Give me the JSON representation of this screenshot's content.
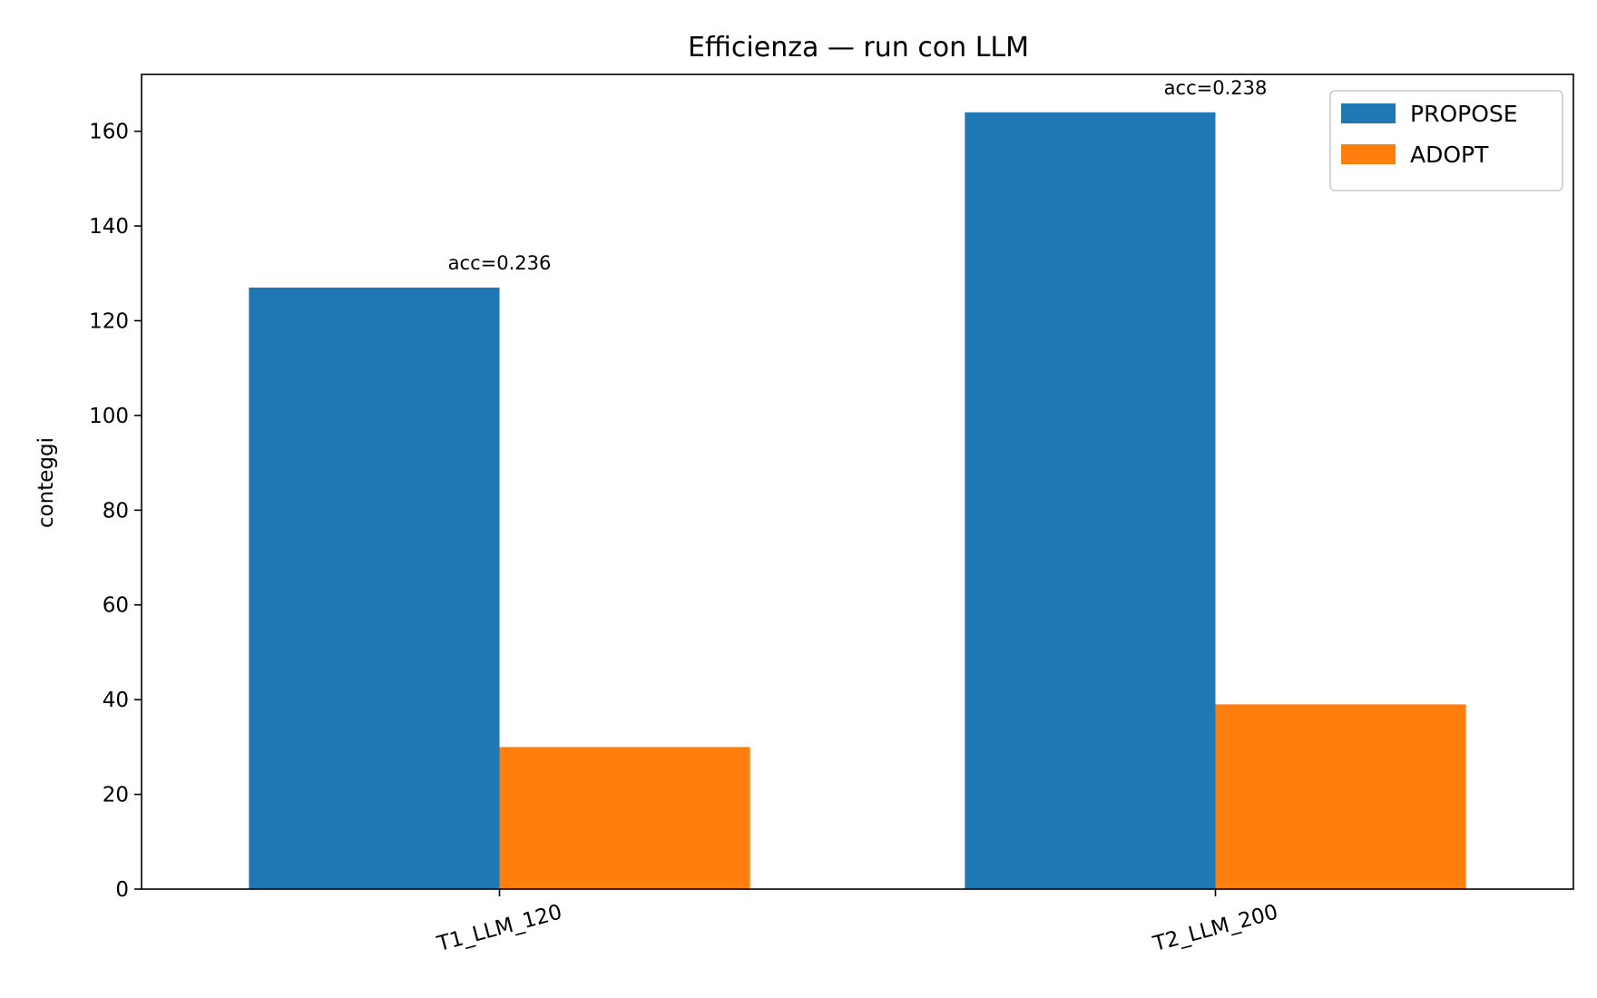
{
  "chart_data": {
    "type": "bar",
    "title": "Efficienza — run con LLM",
    "xlabel": "",
    "ylabel": "conteggi",
    "categories": [
      "T1_LLM_120",
      "T2_LLM_200"
    ],
    "series": [
      {
        "name": "PROPOSE",
        "color": "#1f77b4",
        "values": [
          127,
          164
        ]
      },
      {
        "name": "ADOPT",
        "color": "#ff7f0e",
        "values": [
          30,
          39
        ]
      }
    ],
    "annotations": [
      "acc=0.236",
      "acc=0.238"
    ],
    "ylim": [
      0,
      172
    ],
    "yticks": [
      0,
      20,
      40,
      60,
      80,
      100,
      120,
      140,
      160
    ],
    "legend_position": "top-right",
    "grid": false
  }
}
